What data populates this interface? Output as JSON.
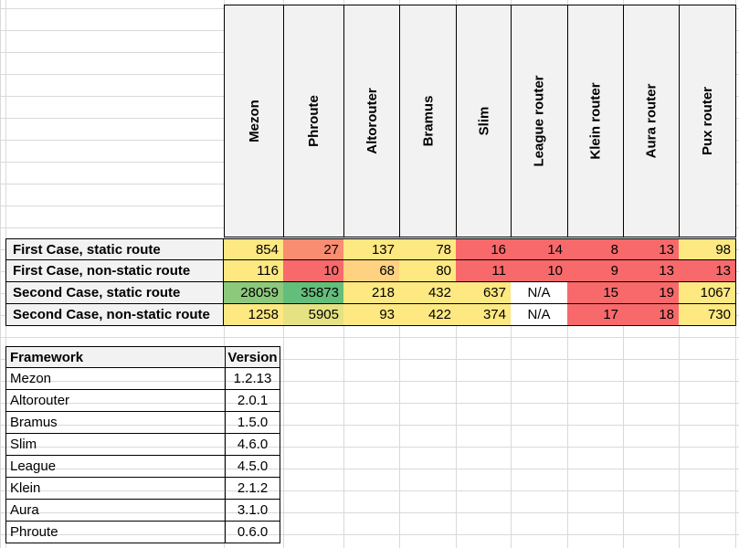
{
  "frameworks": [
    "Mezon",
    "Phroute",
    "Altorouter",
    "Bramus",
    "Slim",
    "League router",
    "Klein router",
    "Aura router",
    "Pux router"
  ],
  "rows": [
    {
      "label": "First Case, static route",
      "values": [
        "854",
        "27",
        "137",
        "78",
        "16",
        "14",
        "8",
        "13",
        "98"
      ],
      "colors": [
        "#fde881",
        "#f98d72",
        "#fde881",
        "#fde881",
        "#f8696b",
        "#f8696b",
        "#f8696b",
        "#f8696b",
        "#fde881"
      ]
    },
    {
      "label": "First Case, non-static route",
      "values": [
        "116",
        "10",
        "68",
        "80",
        "11",
        "10",
        "9",
        "13",
        "13"
      ],
      "colors": [
        "#fde881",
        "#f8696b",
        "#fed280",
        "#fde881",
        "#f8696b",
        "#f8696b",
        "#f8696b",
        "#f8696b",
        "#f8696b"
      ]
    },
    {
      "label": "Second Case, static route",
      "values": [
        "28059",
        "35873",
        "218",
        "432",
        "637",
        "N/A",
        "15",
        "19",
        "1067"
      ],
      "colors": [
        "#8cc97c",
        "#63be7b",
        "#fde881",
        "#fde881",
        "#fde881",
        "#ffffff",
        "#f8696b",
        "#f8696b",
        "#fde881"
      ]
    },
    {
      "label": "Second Case, non-static route",
      "values": [
        "1258",
        "5905",
        "93",
        "422",
        "374",
        "N/A",
        "17",
        "18",
        "730"
      ],
      "colors": [
        "#fde881",
        "#e5e283",
        "#fde881",
        "#fde881",
        "#fde881",
        "#ffffff",
        "#f8696b",
        "#f8696b",
        "#fde881"
      ]
    }
  ],
  "versions": {
    "header": {
      "framework": "Framework",
      "version": "Version"
    },
    "items": [
      {
        "name": "Mezon",
        "version": "1.2.13"
      },
      {
        "name": "Altorouter",
        "version": "2.0.1"
      },
      {
        "name": "Bramus",
        "version": "1.5.0"
      },
      {
        "name": "Slim",
        "version": "4.6.0"
      },
      {
        "name": "League",
        "version": "4.5.0"
      },
      {
        "name": "Klein",
        "version": "2.1.2"
      },
      {
        "name": "Aura",
        "version": "3.1.0"
      },
      {
        "name": "Phroute",
        "version": "0.6.0"
      }
    ]
  }
}
